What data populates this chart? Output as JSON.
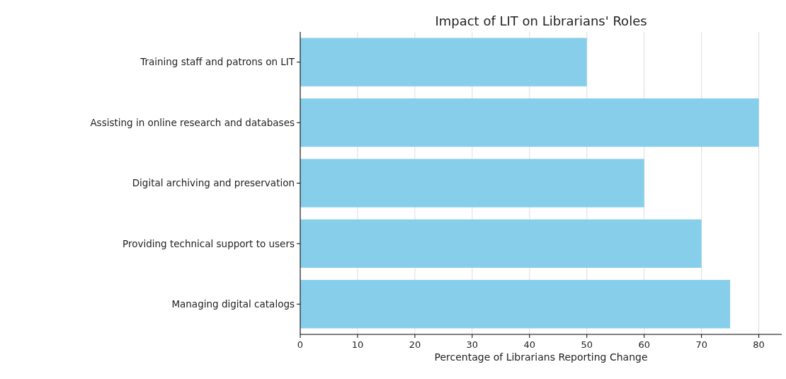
{
  "chart_data": {
    "type": "bar",
    "orientation": "horizontal",
    "title": "Impact of LIT on Librarians' Roles",
    "xlabel": "Percentage of Librarians Reporting Change",
    "categories": [
      "Training staff and patrons on LIT",
      "Assisting in online research and databases",
      "Digital archiving and preservation",
      "Providing technical support to users",
      "Managing digital catalogs"
    ],
    "values": [
      50,
      80,
      60,
      70,
      75
    ],
    "color": "#87ceeb",
    "xlim": [
      0,
      84
    ],
    "xticks": [
      0,
      10,
      20,
      30,
      40,
      50,
      60,
      70,
      80
    ],
    "grid": "x"
  }
}
